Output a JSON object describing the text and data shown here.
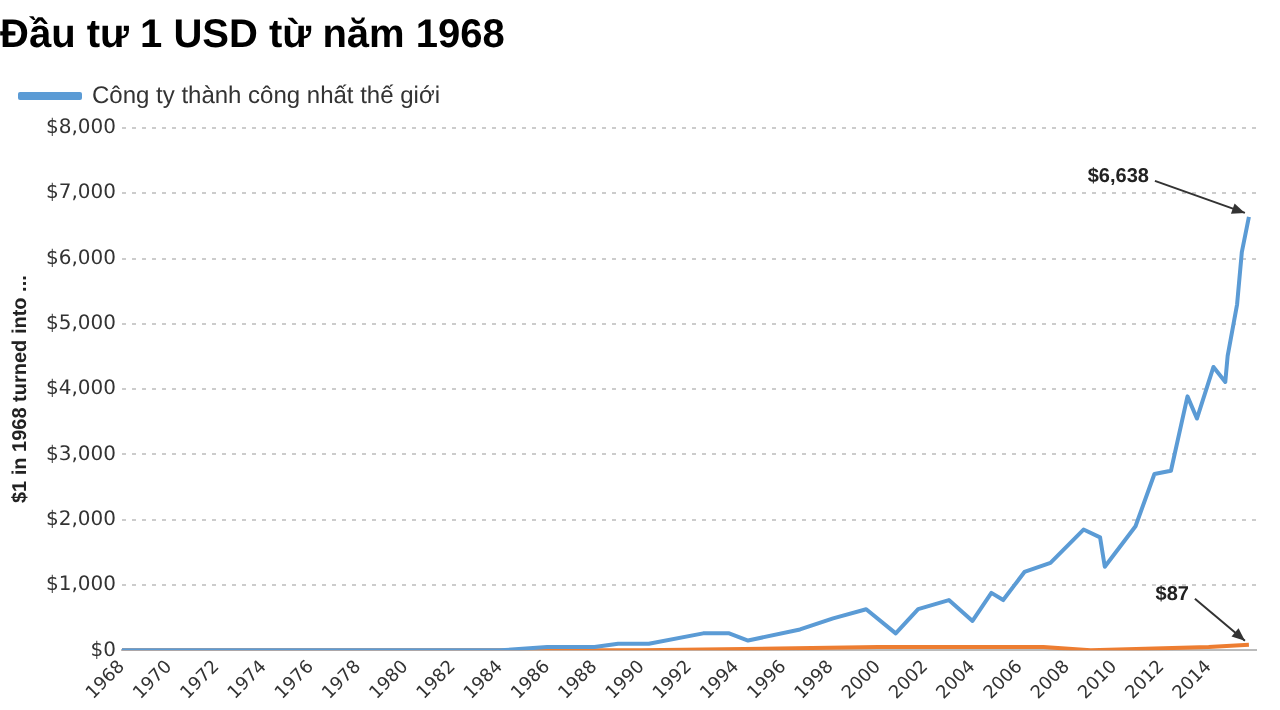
{
  "chart_data": {
    "type": "line",
    "title": "Đầu tư 1 USD từ năm 1968",
    "ylabel": "$1 in 1968 turned into ...",
    "xlim": [
      1968,
      2016
    ],
    "xticks": [
      1968,
      1970,
      1972,
      1974,
      1976,
      1978,
      1980,
      1982,
      1984,
      1986,
      1988,
      1990,
      1992,
      1994,
      1996,
      1998,
      2000,
      2002,
      2004,
      2006,
      2008,
      2010,
      2012,
      2014
    ],
    "ylim": [
      0,
      8000
    ],
    "yticks": [
      {
        "value": 0,
        "label": "$0"
      },
      {
        "value": 1000,
        "label": "$1,000"
      },
      {
        "value": 2000,
        "label": "$2,000"
      },
      {
        "value": 3000,
        "label": "$3,000"
      },
      {
        "value": 4000,
        "label": "$4,000"
      },
      {
        "value": 5000,
        "label": "$5,000"
      },
      {
        "value": 6000,
        "label": "$6,000"
      },
      {
        "value": 7000,
        "label": "$7,000"
      },
      {
        "value": 8000,
        "label": "$8,000"
      }
    ],
    "grid": "y",
    "legend": "top left",
    "marker": "none",
    "line_style": "solid",
    "series": [
      {
        "name": "Công ty thành công nhất thế giới",
        "color": "#5b9bd5",
        "x": [
          1968,
          1975,
          1980.5,
          1984,
          1986,
          1988,
          1989,
          1990.3,
          1992.6,
          1993.7,
          1994.5,
          1996.7,
          1998.1,
          1999.5,
          2000.75,
          2001.7,
          2003,
          2004,
          2004.8,
          2005.3,
          2006.2,
          2007.3,
          2008.7,
          2009.4,
          2009.6,
          2010.9,
          2011.7,
          2012.4,
          2013.1,
          2013.5,
          2014.2,
          2014.7,
          2014.8,
          2015.2,
          2015.4,
          2015.7
        ],
        "values": [
          0,
          0,
          0,
          0,
          50,
          50,
          100,
          100,
          260,
          260,
          150,
          320,
          490,
          630,
          260,
          630,
          770,
          450,
          880,
          770,
          1200,
          1340,
          1850,
          1730,
          1280,
          1900,
          2700,
          2750,
          3890,
          3550,
          4340,
          4110,
          4510,
          5300,
          6100,
          6638
        ]
      },
      {
        "color": "#ed7d31",
        "x": [
          1968,
          1980,
          1990,
          2000,
          2003,
          2007,
          2009,
          2014,
          2015.7
        ],
        "values": [
          0,
          0,
          0,
          50,
          50,
          50,
          0,
          50,
          87
        ]
      }
    ],
    "annotations": [
      {
        "text": "$6,638",
        "x": 2015.7,
        "y": 6638
      },
      {
        "text": "$87",
        "x": 2015.7,
        "y": 87
      }
    ]
  }
}
